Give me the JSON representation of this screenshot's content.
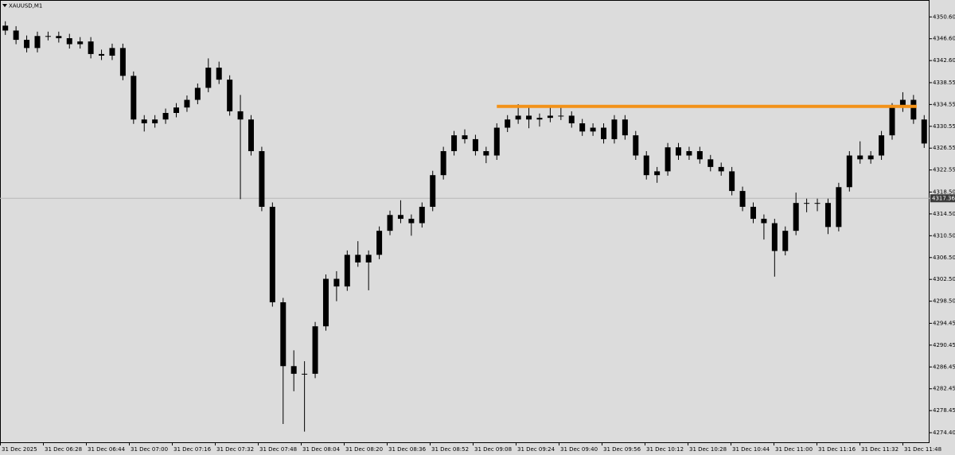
{
  "chart_data": {
    "type": "candlestick",
    "title": "XAUUSD,M1",
    "color": "#000000",
    "categories": [
      "31 Dec 2025",
      "31 Dec 06:28",
      "31 Dec 06:44",
      "31 Dec 07:00",
      "31 Dec 07:16",
      "31 Dec 07:32",
      "31 Dec 07:48",
      "31 Dec 08:04",
      "31 Dec 08:20",
      "31 Dec 08:36",
      "31 Dec 08:52",
      "31 Dec 09:08",
      "31 Dec 09:24",
      "31 Dec 09:40",
      "31 Dec 09:56",
      "31 Dec 10:12",
      "31 Dec 10:28",
      "31 Dec 10:44",
      "31 Dec 11:00",
      "31 Dec 11:16",
      "31 Dec 11:32",
      "31 Dec 11:48"
    ],
    "open": [
      4349.0,
      4348.1,
      4346.4,
      4344.9,
      4347.1,
      4347.1,
      4346.7,
      4345.6,
      4346.1,
      4343.8,
      4343.5,
      4344.9,
      4339.8,
      4331.8,
      4331.1,
      4331.8,
      4333.0,
      4334.0,
      4335.4,
      4337.6,
      4341.3,
      4339.1,
      4333.3,
      4331.8,
      4326.0,
      4315.8,
      4298.3,
      4286.6,
      4285.2,
      4285.2,
      4293.9,
      4302.6,
      4301.2,
      4307.0,
      4305.6,
      4307.0,
      4311.4,
      4314.3,
      4313.6,
      4312.8,
      4315.8,
      4321.6,
      4326.0,
      4328.9,
      4328.2,
      4326.0,
      4325.2,
      4330.3,
      4331.8,
      4332.5,
      4331.8,
      4332.1,
      4332.5,
      4332.5,
      4331.1,
      4329.6,
      4330.3,
      4328.2,
      4331.8,
      4328.9,
      4325.2,
      4321.6,
      4322.3,
      4326.7,
      4325.2,
      4326.0,
      4324.5,
      4323.1,
      4322.3,
      4318.7,
      4315.8,
      4313.6,
      4312.8,
      4307.7,
      4311.4,
      4316.5,
      4316.5,
      4316.5,
      4312.1,
      4319.4,
      4325.2,
      4324.5,
      4325.2,
      4328.9,
      4334.0,
      4335.4,
      4331.8
    ],
    "high": [
      4349.8,
      4348.9,
      4347.2,
      4347.9,
      4347.9,
      4347.9,
      4347.5,
      4346.9,
      4346.9,
      4344.6,
      4345.7,
      4345.7,
      4340.6,
      4332.6,
      4332.6,
      4333.8,
      4334.8,
      4336.2,
      4338.4,
      4343.0,
      4342.4,
      4339.9,
      4336.3,
      4332.6,
      4326.8,
      4316.6,
      4299.1,
      4289.5,
      4287.5,
      4294.7,
      4303.4,
      4304.0,
      4307.8,
      4309.5,
      4307.8,
      4312.2,
      4315.1,
      4317.0,
      4314.4,
      4316.6,
      4322.4,
      4326.8,
      4329.7,
      4330.0,
      4329.0,
      4326.8,
      4331.1,
      4332.6,
      4334.6,
      4334.3,
      4332.9,
      4334.4,
      4334.0,
      4333.3,
      4331.9,
      4331.1,
      4331.1,
      4332.6,
      4332.6,
      4329.7,
      4326.0,
      4323.1,
      4327.5,
      4327.5,
      4326.8,
      4326.8,
      4325.3,
      4323.9,
      4323.1,
      4319.5,
      4316.6,
      4314.4,
      4313.6,
      4312.2,
      4318.4,
      4317.3,
      4317.3,
      4317.3,
      4320.2,
      4326.0,
      4327.8,
      4326.0,
      4329.7,
      4334.8,
      4336.8,
      4336.3,
      4332.6
    ],
    "low": [
      4347.3,
      4345.6,
      4344.1,
      4344.1,
      4346.3,
      4345.9,
      4344.8,
      4344.8,
      4343.0,
      4342.7,
      4342.7,
      4339.0,
      4331.0,
      4329.6,
      4330.3,
      4331.0,
      4332.2,
      4333.2,
      4334.6,
      4336.8,
      4338.3,
      4332.5,
      4317.2,
      4325.2,
      4315.0,
      4297.5,
      4276.0,
      4282.0,
      4274.6,
      4284.4,
      4293.1,
      4298.5,
      4300.4,
      4304.8,
      4300.5,
      4306.2,
      4310.6,
      4312.8,
      4310.5,
      4312.0,
      4315.0,
      4320.8,
      4325.2,
      4327.4,
      4325.2,
      4323.8,
      4324.4,
      4329.5,
      4331.0,
      4330.2,
      4330.5,
      4331.3,
      4331.7,
      4330.3,
      4328.8,
      4328.8,
      4327.4,
      4327.4,
      4328.1,
      4324.4,
      4320.8,
      4320.2,
      4321.5,
      4324.4,
      4324.4,
      4323.7,
      4322.3,
      4321.5,
      4317.9,
      4315.0,
      4312.8,
      4309.8,
      4303.0,
      4306.9,
      4310.6,
      4314.8,
      4315.0,
      4310.8,
      4311.3,
      4318.6,
      4323.7,
      4323.7,
      4324.4,
      4328.1,
      4333.2,
      4331.0,
      4326.6
    ],
    "close": [
      4348.1,
      4346.4,
      4344.9,
      4347.1,
      4347.1,
      4346.7,
      4345.6,
      4346.1,
      4343.8,
      4343.5,
      4344.9,
      4339.8,
      4331.8,
      4331.1,
      4331.8,
      4333.0,
      4334.0,
      4335.4,
      4337.6,
      4341.3,
      4339.1,
      4333.3,
      4331.8,
      4326.0,
      4315.8,
      4298.3,
      4286.6,
      4285.2,
      4285.2,
      4293.9,
      4302.6,
      4301.2,
      4307.0,
      4305.6,
      4307.0,
      4311.4,
      4314.3,
      4313.6,
      4312.8,
      4315.8,
      4321.6,
      4326.0,
      4328.9,
      4328.2,
      4326.0,
      4325.2,
      4330.3,
      4331.8,
      4332.5,
      4331.8,
      4332.1,
      4332.5,
      4332.5,
      4331.1,
      4329.6,
      4330.3,
      4328.2,
      4331.8,
      4328.9,
      4325.2,
      4321.6,
      4322.3,
      4326.7,
      4325.2,
      4326.0,
      4324.5,
      4323.1,
      4322.3,
      4318.7,
      4315.8,
      4313.6,
      4312.8,
      4307.7,
      4311.4,
      4316.5,
      4316.5,
      4316.5,
      4312.1,
      4319.4,
      4325.2,
      4324.5,
      4325.2,
      4328.9,
      4334.0,
      4335.4,
      4331.8,
      4327.4
    ],
    "ylim": [
      4272.5,
      4353.7
    ],
    "yticks": [
      {
        "value": 4350.6,
        "label": "4350.60"
      },
      {
        "value": 4346.6,
        "label": "4346.60"
      },
      {
        "value": 4342.6,
        "label": "4342.60"
      },
      4338.55,
      4334.55,
      4330.55,
      4326.55,
      4322.55,
      {
        "value": 4318.5,
        "label": "4318.50"
      },
      {
        "value": 4314.5,
        "label": "4314.50"
      },
      {
        "value": 4310.5,
        "label": "4310.50"
      },
      {
        "value": 4306.5,
        "label": "4306.50"
      },
      {
        "value": 4302.5,
        "label": "4302.50"
      },
      {
        "value": 4298.5,
        "label": "4298.50"
      },
      4294.45,
      4290.45,
      4286.45,
      4282.45,
      4278.45,
      {
        "value": 4274.4,
        "label": "4274.40"
      }
    ],
    "current_price": 4317.36,
    "level": {
      "value": 4334.2,
      "color": "#f39218"
    }
  }
}
